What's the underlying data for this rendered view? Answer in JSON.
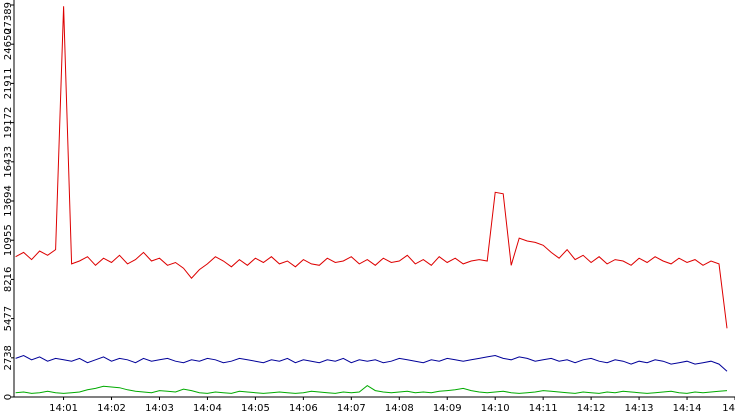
{
  "chart_data": {
    "type": "line",
    "x": [
      0,
      10,
      20,
      30,
      40,
      50,
      60,
      70,
      80,
      90,
      100,
      110,
      120,
      130,
      140,
      150,
      160,
      170,
      180,
      190,
      200,
      210,
      220,
      230,
      240,
      250,
      260,
      270,
      280,
      290,
      300,
      310,
      320,
      330,
      340,
      350,
      360,
      370,
      380,
      390,
      400,
      410,
      420,
      430,
      440,
      450,
      460,
      470,
      480,
      490,
      500,
      510,
      520,
      530,
      540,
      550,
      560,
      570,
      580,
      590,
      600,
      610,
      620,
      630,
      640,
      650,
      660,
      670,
      680,
      690,
      700,
      710,
      720,
      730,
      740,
      750,
      760,
      770,
      780,
      790,
      800,
      810,
      820,
      830,
      840,
      850,
      860,
      870,
      880,
      890
    ],
    "series": [
      {
        "color": "#dd0000",
        "values": [
          9800,
          10100,
          9600,
          10200,
          9900,
          10300,
          27300,
          9300,
          9500,
          9800,
          9200,
          9700,
          9400,
          9900,
          9300,
          9600,
          10100,
          9500,
          9700,
          9200,
          9400,
          9000,
          8300,
          8900,
          9300,
          9800,
          9500,
          9100,
          9600,
          9200,
          9700,
          9400,
          9800,
          9300,
          9500,
          9100,
          9600,
          9300,
          9200,
          9700,
          9400,
          9500,
          9800,
          9300,
          9600,
          9200,
          9700,
          9400,
          9500,
          9900,
          9300,
          9600,
          9200,
          9800,
          9400,
          9700,
          9300,
          9500,
          9600,
          9500,
          14300,
          14200,
          9200,
          11100,
          10900,
          10800,
          10600,
          10100,
          9700,
          10300,
          9600,
          9900,
          9400,
          9800,
          9300,
          9600,
          9500,
          9200,
          9700,
          9400,
          9800,
          9500,
          9300,
          9700,
          9400,
          9600,
          9200,
          9500,
          9300,
          4800
        ]
      },
      {
        "color": "#000099",
        "values": [
          2700,
          2900,
          2600,
          2800,
          2500,
          2700,
          2600,
          2500,
          2700,
          2400,
          2600,
          2800,
          2500,
          2700,
          2600,
          2400,
          2700,
          2500,
          2600,
          2700,
          2500,
          2400,
          2600,
          2500,
          2700,
          2600,
          2400,
          2500,
          2700,
          2600,
          2500,
          2400,
          2600,
          2500,
          2700,
          2400,
          2600,
          2500,
          2400,
          2600,
          2500,
          2700,
          2400,
          2600,
          2500,
          2600,
          2400,
          2500,
          2700,
          2600,
          2500,
          2400,
          2600,
          2500,
          2700,
          2600,
          2500,
          2600,
          2700,
          2800,
          2900,
          2700,
          2600,
          2800,
          2700,
          2500,
          2600,
          2700,
          2500,
          2600,
          2400,
          2600,
          2700,
          2500,
          2400,
          2600,
          2500,
          2300,
          2500,
          2400,
          2600,
          2500,
          2300,
          2400,
          2500,
          2300,
          2400,
          2500,
          2300,
          1800
        ]
      },
      {
        "color": "#00aa00",
        "values": [
          300,
          350,
          250,
          300,
          400,
          300,
          250,
          300,
          350,
          500,
          600,
          750,
          700,
          650,
          500,
          400,
          350,
          300,
          450,
          400,
          350,
          550,
          450,
          300,
          250,
          350,
          300,
          250,
          400,
          350,
          300,
          250,
          300,
          350,
          300,
          250,
          300,
          400,
          350,
          300,
          250,
          350,
          300,
          350,
          800,
          450,
          350,
          300,
          350,
          400,
          300,
          350,
          300,
          400,
          450,
          500,
          600,
          450,
          350,
          300,
          350,
          400,
          300,
          250,
          300,
          350,
          450,
          400,
          350,
          300,
          250,
          350,
          300,
          250,
          350,
          300,
          400,
          350,
          300,
          250,
          300,
          350,
          400,
          300,
          250,
          350,
          300,
          350,
          400,
          450
        ]
      }
    ],
    "xlim": [
      -2,
      900
    ],
    "xticks": [
      {
        "value": 60,
        "label": "14:01"
      },
      {
        "value": 120,
        "label": "14:02"
      },
      {
        "value": 180,
        "label": "14:03"
      },
      {
        "value": 240,
        "label": "14:04"
      },
      {
        "value": 300,
        "label": "14:05"
      },
      {
        "value": 360,
        "label": "14:06"
      },
      {
        "value": 420,
        "label": "14:07"
      },
      {
        "value": 480,
        "label": "14:08"
      },
      {
        "value": 540,
        "label": "14:09"
      },
      {
        "value": 600,
        "label": "14:10"
      },
      {
        "value": 660,
        "label": "14:11"
      },
      {
        "value": 720,
        "label": "14:12"
      },
      {
        "value": 780,
        "label": "14:13"
      },
      {
        "value": 840,
        "label": "14:14"
      },
      {
        "value": 900,
        "label": "14"
      }
    ],
    "ylim": [
      0,
      27389
    ],
    "yticks": [
      0,
      2738,
      5477,
      8216,
      10955,
      13694,
      16433,
      19172,
      21911,
      24650,
      27389
    ]
  }
}
